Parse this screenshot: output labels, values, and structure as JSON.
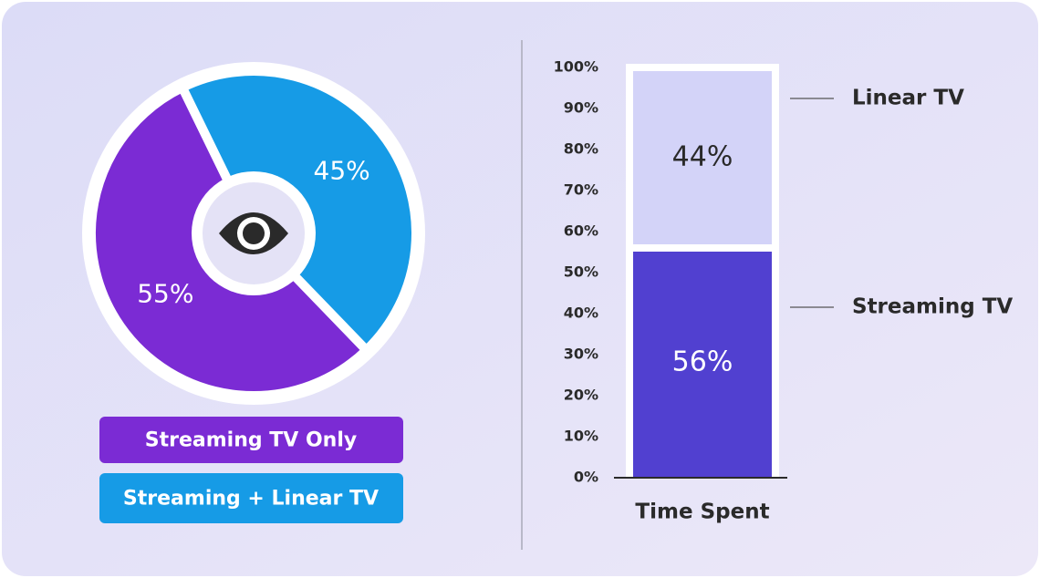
{
  "chart_data": [
    {
      "type": "pie",
      "categories": [
        "Streaming TV Only",
        "Streaming + Linear TV"
      ],
      "values": [
        55,
        45
      ],
      "value_labels": [
        "55%",
        "45%"
      ],
      "colors": [
        "#7b2bd4",
        "#169be6"
      ]
    },
    {
      "type": "bar",
      "stacked": true,
      "categories": [
        "Time Spent"
      ],
      "series": [
        {
          "name": "Streaming TV",
          "color": "#5140d0",
          "values": [
            56
          ],
          "value_labels": [
            "56%"
          ]
        },
        {
          "name": "Linear TV",
          "color": "#d3d3f8",
          "values": [
            44
          ],
          "value_labels": [
            "44%"
          ]
        }
      ],
      "ylim": [
        0,
        100
      ],
      "yticks": [
        {
          "value": 0,
          "label": "0%"
        },
        {
          "value": 10,
          "label": "10%"
        },
        {
          "value": 20,
          "label": "20%"
        },
        {
          "value": 30,
          "label": "30%"
        },
        {
          "value": 40,
          "label": "40%"
        },
        {
          "value": 50,
          "label": "50%"
        },
        {
          "value": 60,
          "label": "60%"
        },
        {
          "value": 70,
          "label": "70%"
        },
        {
          "value": 80,
          "label": "80%"
        },
        {
          "value": 90,
          "label": "90%"
        },
        {
          "value": 100,
          "label": "100%"
        }
      ]
    }
  ]
}
